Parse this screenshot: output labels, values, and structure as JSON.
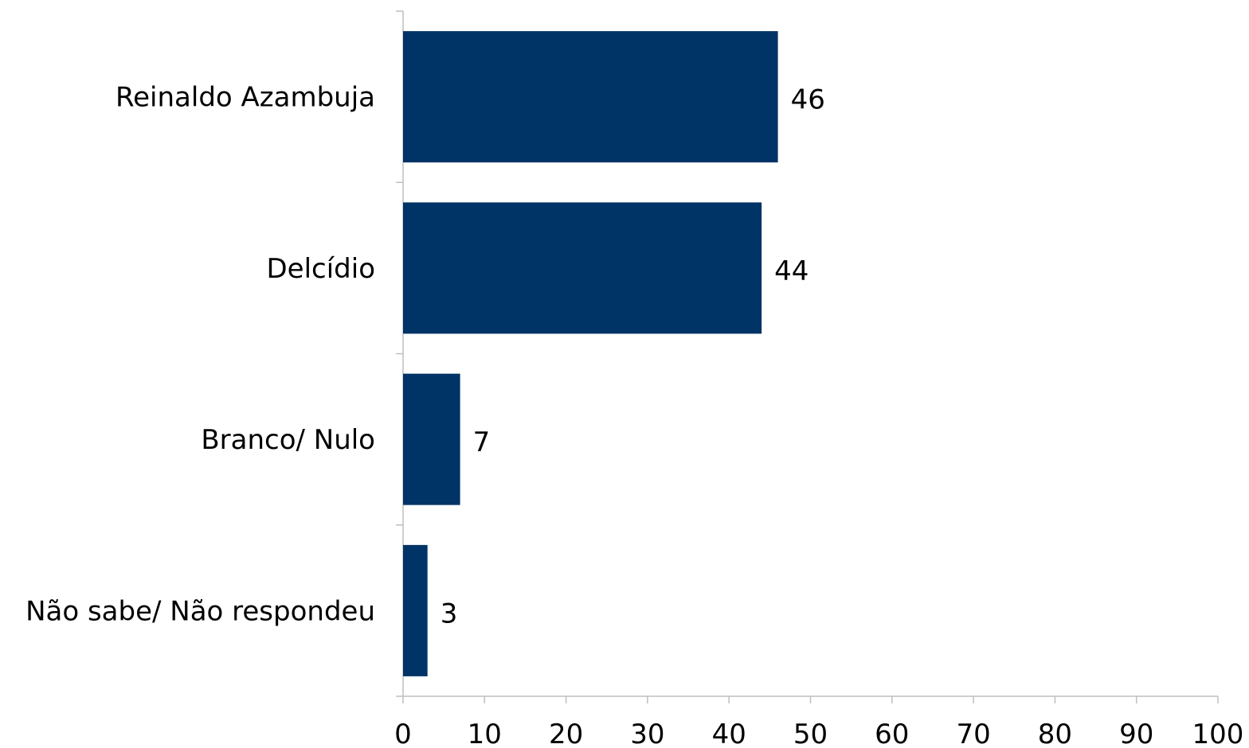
{
  "chart_data": {
    "type": "bar",
    "orientation": "horizontal",
    "categories": [
      "Reinaldo Azambuja",
      "Delcídio",
      "Branco/ Nulo",
      "Não sabe/ Não respondeu"
    ],
    "values": [
      46,
      44,
      7,
      3
    ],
    "data_labels": [
      "46",
      "44",
      "7",
      "3"
    ],
    "xlim": [
      0,
      100
    ],
    "x_ticks": [
      0,
      10,
      20,
      30,
      40,
      50,
      60,
      70,
      80,
      90,
      100
    ],
    "x_tick_labels": [
      "0",
      "10",
      "20",
      "30",
      "40",
      "50",
      "60",
      "70",
      "80",
      "90",
      "100"
    ],
    "bar_color": "#003366",
    "grid": false,
    "legend": "none"
  }
}
